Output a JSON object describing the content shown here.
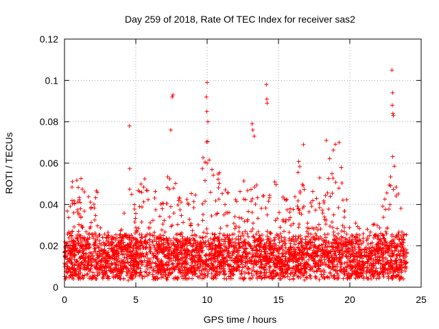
{
  "chart_data": {
    "type": "scatter",
    "title": "Day 259 of 2018, Rate Of TEC Index for receiver sas2",
    "xlabel": "GPS time / hours",
    "ylabel": "ROTI / TECUs",
    "xlim": [
      0,
      25
    ],
    "ylim": [
      0,
      0.12
    ],
    "xticks": [
      0,
      5,
      10,
      15,
      20,
      25
    ],
    "xtick_labels": [
      "0",
      "5",
      "10",
      "15",
      "20",
      "25"
    ],
    "yticks": [
      0,
      0.02,
      0.04,
      0.06,
      0.08,
      0.1,
      0.12
    ],
    "ytick_labels": [
      "0",
      "0.02",
      "0.04",
      "0.06",
      "0.08",
      "0.1",
      "0.12"
    ],
    "grid": true,
    "marker": "plus",
    "color": "#ff0000",
    "series": [
      {
        "name": "ROTI",
        "description": "Dense cloud of ROTI samples, roughly 0.003-0.04 TECU/min, spanning 0-24 h",
        "envelope_max": [
          [
            0.0,
            0.03
          ],
          [
            0.2,
            0.042
          ],
          [
            0.5,
            0.05
          ],
          [
            0.8,
            0.056
          ],
          [
            1.0,
            0.059
          ],
          [
            1.3,
            0.048
          ],
          [
            1.6,
            0.052
          ],
          [
            2.0,
            0.038
          ],
          [
            2.2,
            0.052
          ],
          [
            2.5,
            0.034
          ],
          [
            3.0,
            0.028
          ],
          [
            3.5,
            0.024
          ],
          [
            4.0,
            0.03
          ],
          [
            4.3,
            0.05
          ],
          [
            4.5,
            0.062
          ],
          [
            4.8,
            0.058
          ],
          [
            5.0,
            0.05
          ],
          [
            5.5,
            0.058
          ],
          [
            6.0,
            0.044
          ],
          [
            6.5,
            0.05
          ],
          [
            7.0,
            0.052
          ],
          [
            7.5,
            0.062
          ],
          [
            8.0,
            0.044
          ],
          [
            8.5,
            0.042
          ],
          [
            9.0,
            0.05
          ],
          [
            9.5,
            0.056
          ],
          [
            10.0,
            0.072
          ],
          [
            10.5,
            0.058
          ],
          [
            11.0,
            0.062
          ],
          [
            11.5,
            0.05
          ],
          [
            12.0,
            0.046
          ],
          [
            12.5,
            0.056
          ],
          [
            13.0,
            0.066
          ],
          [
            13.5,
            0.06
          ],
          [
            14.0,
            0.052
          ],
          [
            14.5,
            0.058
          ],
          [
            15.0,
            0.048
          ],
          [
            15.5,
            0.044
          ],
          [
            16.0,
            0.05
          ],
          [
            16.5,
            0.064
          ],
          [
            17.0,
            0.046
          ],
          [
            17.5,
            0.048
          ],
          [
            18.0,
            0.056
          ],
          [
            18.5,
            0.068
          ],
          [
            19.0,
            0.072
          ],
          [
            19.5,
            0.056
          ],
          [
            20.0,
            0.04
          ],
          [
            20.5,
            0.03
          ],
          [
            21.0,
            0.028
          ],
          [
            21.5,
            0.03
          ],
          [
            22.0,
            0.034
          ],
          [
            22.5,
            0.046
          ],
          [
            22.8,
            0.058
          ],
          [
            23.0,
            0.064
          ],
          [
            23.3,
            0.056
          ],
          [
            23.6,
            0.038
          ],
          [
            24.0,
            0.03
          ]
        ],
        "spikes": [
          [
            4.55,
            0.078
          ],
          [
            7.45,
            0.076
          ],
          [
            7.55,
            0.092
          ],
          [
            7.6,
            0.093
          ],
          [
            9.95,
            0.092
          ],
          [
            9.98,
            0.085
          ],
          [
            10.0,
            0.099
          ],
          [
            10.05,
            0.08
          ],
          [
            13.15,
            0.079
          ],
          [
            13.2,
            0.076
          ],
          [
            13.3,
            0.073
          ],
          [
            14.15,
            0.098
          ],
          [
            14.18,
            0.091
          ],
          [
            14.2,
            0.089
          ],
          [
            16.75,
            0.069
          ],
          [
            18.35,
            0.071
          ],
          [
            19.25,
            0.07
          ],
          [
            22.95,
            0.105
          ],
          [
            23.0,
            0.094
          ],
          [
            22.98,
            0.088
          ],
          [
            23.02,
            0.084
          ],
          [
            23.05,
            0.083
          ]
        ]
      }
    ]
  }
}
